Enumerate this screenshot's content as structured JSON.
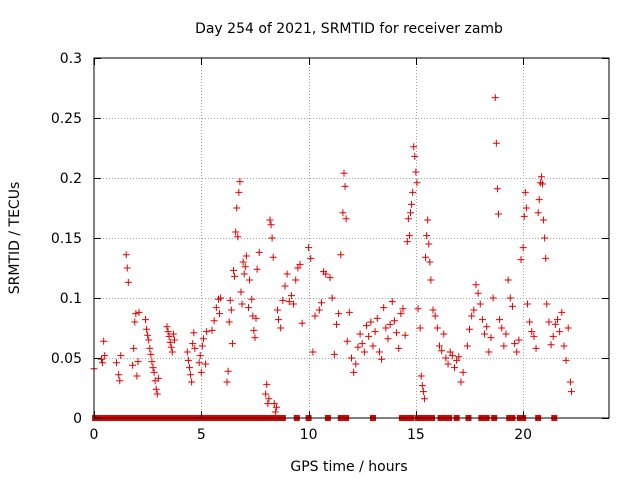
{
  "chart_data": {
    "type": "scatter",
    "title": "Day 254 of 2021, SRMTID for receiver zamb",
    "xlabel": "GPS time / hours",
    "ylabel": "SRMTID / TECUs",
    "xlim": [
      0,
      24
    ],
    "ylim": [
      0,
      0.3
    ],
    "xticks": [
      0,
      5,
      10,
      15,
      20
    ],
    "xtick_labels": [
      "0",
      "5",
      "10",
      "15",
      "20"
    ],
    "yticks": [
      0,
      0.05,
      0.1,
      0.15,
      0.2,
      0.25,
      0.3
    ],
    "ytick_labels": [
      "0",
      "0.05",
      "0.1",
      "0.15",
      "0.2",
      "0.25",
      "0.3"
    ],
    "grid": true,
    "marker": "plus",
    "color": "#e00000",
    "series": [
      {
        "name": "SRMTID",
        "points": [
          [
            0.0,
            0.041
          ],
          [
            0.35,
            0.049
          ],
          [
            0.4,
            0.046
          ],
          [
            0.45,
            0.064
          ],
          [
            0.5,
            0.052
          ],
          [
            1.05,
            0.046
          ],
          [
            1.15,
            0.036
          ],
          [
            1.2,
            0.031
          ],
          [
            1.25,
            0.052
          ],
          [
            1.5,
            0.136
          ],
          [
            1.55,
            0.125
          ],
          [
            1.6,
            0.113
          ],
          [
            1.8,
            0.044
          ],
          [
            1.85,
            0.058
          ],
          [
            1.9,
            0.08
          ],
          [
            1.95,
            0.087
          ],
          [
            2.0,
            0.035
          ],
          [
            2.05,
            0.047
          ],
          [
            2.1,
            0.088
          ],
          [
            2.4,
            0.082
          ],
          [
            2.45,
            0.074
          ],
          [
            2.5,
            0.069
          ],
          [
            2.55,
            0.065
          ],
          [
            2.6,
            0.058
          ],
          [
            2.65,
            0.053
          ],
          [
            2.7,
            0.047
          ],
          [
            2.75,
            0.042
          ],
          [
            2.8,
            0.038
          ],
          [
            2.85,
            0.031
          ],
          [
            2.9,
            0.024
          ],
          [
            2.95,
            0.02
          ],
          [
            3.0,
            0.033
          ],
          [
            3.4,
            0.076
          ],
          [
            3.45,
            0.072
          ],
          [
            3.5,
            0.068
          ],
          [
            3.55,
            0.063
          ],
          [
            3.6,
            0.059
          ],
          [
            3.65,
            0.055
          ],
          [
            3.7,
            0.07
          ],
          [
            3.75,
            0.065
          ],
          [
            4.35,
            0.055
          ],
          [
            4.4,
            0.048
          ],
          [
            4.45,
            0.042
          ],
          [
            4.5,
            0.036
          ],
          [
            4.55,
            0.03
          ],
          [
            4.6,
            0.062
          ],
          [
            4.65,
            0.071
          ],
          [
            4.7,
            0.058
          ],
          [
            4.9,
            0.046
          ],
          [
            4.95,
            0.052
          ],
          [
            5.0,
            0.038
          ],
          [
            5.05,
            0.06
          ],
          [
            5.1,
            0.066
          ],
          [
            5.2,
            0.045
          ],
          [
            5.25,
            0.072
          ],
          [
            5.5,
            0.073
          ],
          [
            5.6,
            0.081
          ],
          [
            5.7,
            0.092
          ],
          [
            5.8,
            0.099
          ],
          [
            5.85,
            0.087
          ],
          [
            5.9,
            0.1
          ],
          [
            6.2,
            0.03
          ],
          [
            6.25,
            0.039
          ],
          [
            6.3,
            0.08
          ],
          [
            6.35,
            0.098
          ],
          [
            6.4,
            0.09
          ],
          [
            6.45,
            0.062
          ],
          [
            6.5,
            0.123
          ],
          [
            6.55,
            0.118
          ],
          [
            6.6,
            0.155
          ],
          [
            6.65,
            0.175
          ],
          [
            6.7,
            0.151
          ],
          [
            6.75,
            0.188
          ],
          [
            6.8,
            0.197
          ],
          [
            6.85,
            0.105
          ],
          [
            6.9,
            0.095
          ],
          [
            6.95,
            0.13
          ],
          [
            7.0,
            0.12
          ],
          [
            7.05,
            0.126
          ],
          [
            7.1,
            0.135
          ],
          [
            7.2,
            0.092
          ],
          [
            7.25,
            0.115
          ],
          [
            7.35,
            0.099
          ],
          [
            7.4,
            0.085
          ],
          [
            7.45,
            0.073
          ],
          [
            7.5,
            0.067
          ],
          [
            7.55,
            0.083
          ],
          [
            7.6,
            0.124
          ],
          [
            7.7,
            0.138
          ],
          [
            8.0,
            0.02
          ],
          [
            8.05,
            0.028
          ],
          [
            8.1,
            0.012
          ],
          [
            8.15,
            0.016
          ],
          [
            8.2,
            0.165
          ],
          [
            8.25,
            0.161
          ],
          [
            8.3,
            0.15
          ],
          [
            8.35,
            0.134
          ],
          [
            8.4,
            0.012
          ],
          [
            8.45,
            0.005
          ],
          [
            8.5,
            0.009
          ],
          [
            8.55,
            0.09
          ],
          [
            8.6,
            0.082
          ],
          [
            8.7,
            0.075
          ],
          [
            8.8,
            0.098
          ],
          [
            8.9,
            0.11
          ],
          [
            9.0,
            0.12
          ],
          [
            9.1,
            0.097
          ],
          [
            9.2,
            0.102
          ],
          [
            9.3,
            0.095
          ],
          [
            9.4,
            0.115
          ],
          [
            9.5,
            0.125
          ],
          [
            9.6,
            0.128
          ],
          [
            9.7,
            0.079
          ],
          [
            10.0,
            0.142
          ],
          [
            10.1,
            0.133
          ],
          [
            10.2,
            0.055
          ],
          [
            10.3,
            0.085
          ],
          [
            10.5,
            0.09
          ],
          [
            10.6,
            0.096
          ],
          [
            10.7,
            0.122
          ],
          [
            10.8,
            0.12
          ],
          [
            11.0,
            0.117
          ],
          [
            11.1,
            0.1
          ],
          [
            11.2,
            0.053
          ],
          [
            11.3,
            0.078
          ],
          [
            11.4,
            0.087
          ],
          [
            11.5,
            0.136
          ],
          [
            11.6,
            0.171
          ],
          [
            11.65,
            0.204
          ],
          [
            11.7,
            0.193
          ],
          [
            11.75,
            0.166
          ],
          [
            11.8,
            0.064
          ],
          [
            11.9,
            0.088
          ],
          [
            12.0,
            0.05
          ],
          [
            12.1,
            0.038
          ],
          [
            12.2,
            0.045
          ],
          [
            12.3,
            0.059
          ],
          [
            12.4,
            0.07
          ],
          [
            12.5,
            0.062
          ],
          [
            12.6,
            0.055
          ],
          [
            12.7,
            0.077
          ],
          [
            12.8,
            0.068
          ],
          [
            12.9,
            0.08
          ],
          [
            13.0,
            0.06
          ],
          [
            13.1,
            0.072
          ],
          [
            13.2,
            0.083
          ],
          [
            13.3,
            0.055
          ],
          [
            13.4,
            0.049
          ],
          [
            13.5,
            0.092
          ],
          [
            13.6,
            0.075
          ],
          [
            13.7,
            0.066
          ],
          [
            13.8,
            0.078
          ],
          [
            13.9,
            0.097
          ],
          [
            14.0,
            0.081
          ],
          [
            14.1,
            0.071
          ],
          [
            14.2,
            0.058
          ],
          [
            14.3,
            0.087
          ],
          [
            14.4,
            0.091
          ],
          [
            14.5,
            0.069
          ],
          [
            14.6,
            0.147
          ],
          [
            14.65,
            0.166
          ],
          [
            14.7,
            0.152
          ],
          [
            14.75,
            0.171
          ],
          [
            14.8,
            0.178
          ],
          [
            14.85,
            0.188
          ],
          [
            14.9,
            0.226
          ],
          [
            14.95,
            0.218
          ],
          [
            15.0,
            0.205
          ],
          [
            15.05,
            0.196
          ],
          [
            15.1,
            0.091
          ],
          [
            15.2,
            0.075
          ],
          [
            15.25,
            0.035
          ],
          [
            15.3,
            0.027
          ],
          [
            15.35,
            0.022
          ],
          [
            15.4,
            0.016
          ],
          [
            15.45,
            0.134
          ],
          [
            15.5,
            0.152
          ],
          [
            15.55,
            0.165
          ],
          [
            15.6,
            0.145
          ],
          [
            15.65,
            0.13
          ],
          [
            15.7,
            0.115
          ],
          [
            15.8,
            0.09
          ],
          [
            15.9,
            0.085
          ],
          [
            16.0,
            0.075
          ],
          [
            16.1,
            0.06
          ],
          [
            16.2,
            0.056
          ],
          [
            16.3,
            0.07
          ],
          [
            16.4,
            0.05
          ],
          [
            16.5,
            0.045
          ],
          [
            16.6,
            0.055
          ],
          [
            16.7,
            0.052
          ],
          [
            16.8,
            0.042
          ],
          [
            16.9,
            0.048
          ],
          [
            17.0,
            0.051
          ],
          [
            17.1,
            0.03
          ],
          [
            17.2,
            0.038
          ],
          [
            17.4,
            0.06
          ],
          [
            17.5,
            0.074
          ],
          [
            17.6,
            0.085
          ],
          [
            17.7,
            0.09
          ],
          [
            17.8,
            0.111
          ],
          [
            17.9,
            0.104
          ],
          [
            18.0,
            0.095
          ],
          [
            18.1,
            0.082
          ],
          [
            18.2,
            0.07
          ],
          [
            18.3,
            0.076
          ],
          [
            18.4,
            0.055
          ],
          [
            18.5,
            0.067
          ],
          [
            18.6,
            0.1
          ],
          [
            18.7,
            0.267
          ],
          [
            18.75,
            0.229
          ],
          [
            18.8,
            0.191
          ],
          [
            18.85,
            0.17
          ],
          [
            18.9,
            0.082
          ],
          [
            19.0,
            0.075
          ],
          [
            19.1,
            0.06
          ],
          [
            19.2,
            0.07
          ],
          [
            19.3,
            0.115
          ],
          [
            19.4,
            0.1
          ],
          [
            19.5,
            0.093
          ],
          [
            19.6,
            0.062
          ],
          [
            19.7,
            0.055
          ],
          [
            19.8,
            0.065
          ],
          [
            19.9,
            0.132
          ],
          [
            20.0,
            0.142
          ],
          [
            20.05,
            0.168
          ],
          [
            20.1,
            0.188
          ],
          [
            20.15,
            0.175
          ],
          [
            20.2,
            0.095
          ],
          [
            20.3,
            0.08
          ],
          [
            20.4,
            0.072
          ],
          [
            20.5,
            0.068
          ],
          [
            20.6,
            0.058
          ],
          [
            20.7,
            0.171
          ],
          [
            20.75,
            0.182
          ],
          [
            20.8,
            0.196
          ],
          [
            20.85,
            0.201
          ],
          [
            20.9,
            0.195
          ],
          [
            20.95,
            0.165
          ],
          [
            21.0,
            0.15
          ],
          [
            21.05,
            0.133
          ],
          [
            21.1,
            0.095
          ],
          [
            21.2,
            0.08
          ],
          [
            21.3,
            0.061
          ],
          [
            21.4,
            0.068
          ],
          [
            21.5,
            0.078
          ],
          [
            21.6,
            0.082
          ],
          [
            21.7,
            0.072
          ],
          [
            21.8,
            0.088
          ],
          [
            21.9,
            0.06
          ],
          [
            22.0,
            0.048
          ],
          [
            22.1,
            0.075
          ],
          [
            22.2,
            0.03
          ],
          [
            22.25,
            0.022
          ]
        ],
        "zero_points": [
          0.05,
          0.2,
          0.3,
          0.45,
          0.55,
          0.65,
          0.8,
          0.9,
          1.0,
          1.15,
          1.3,
          1.45,
          1.6,
          1.75,
          1.85,
          1.95,
          2.05,
          2.2,
          2.35,
          2.5,
          2.6,
          2.75,
          2.9,
          3.0,
          3.15,
          3.3,
          3.4,
          3.55,
          3.7,
          3.85,
          3.95,
          4.05,
          4.25,
          4.4,
          4.55,
          4.7,
          4.85,
          5.0,
          5.15,
          5.3,
          5.45,
          5.6,
          5.75,
          5.9,
          6.05,
          6.2,
          6.35,
          6.5,
          6.6,
          6.75,
          6.9,
          7.05,
          7.2,
          7.35,
          7.5,
          7.65,
          7.8,
          7.9,
          8.05,
          8.2,
          8.35,
          8.5,
          8.65,
          8.8,
          9.45,
          10.0,
          10.9,
          11.5,
          11.75,
          13.0,
          14.35,
          14.55,
          14.8,
          15.1,
          15.35,
          15.6,
          15.75,
          16.15,
          16.3,
          16.55,
          16.9,
          17.45,
          18.05,
          18.3,
          18.65,
          19.35,
          19.5,
          19.85,
          20.0,
          20.7,
          21.45
        ]
      }
    ]
  }
}
